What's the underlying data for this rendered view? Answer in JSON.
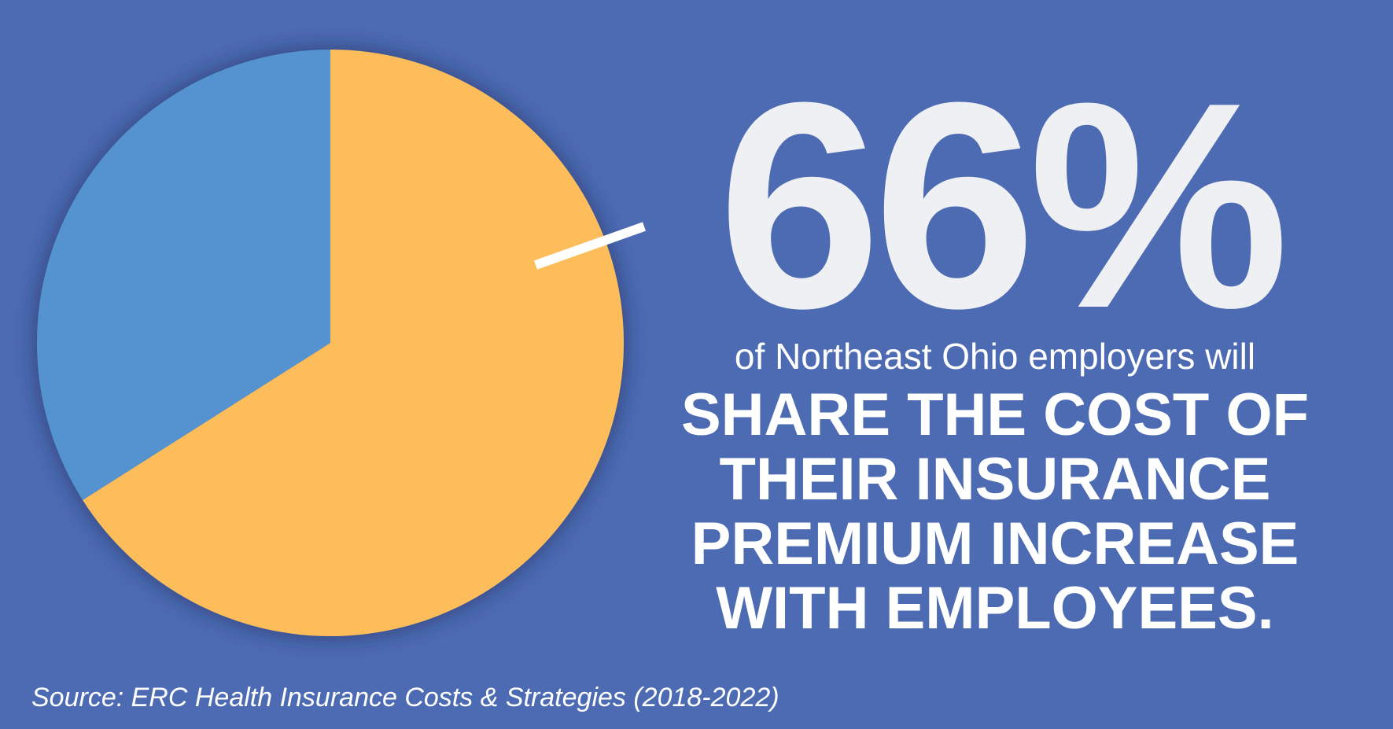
{
  "chart_data": {
    "type": "pie",
    "values": [
      66,
      34
    ],
    "value_labels": [
      "66%",
      null
    ],
    "colors": [
      "#fcbd5a",
      "#5592d0"
    ],
    "subtitle": "of Northeast Ohio employers will",
    "headline": [
      "SHARE THE COST OF",
      "THEIR INSURANCE",
      "PREMIUM INCREASE",
      "WITH EMPLOYEES."
    ],
    "source": "Source: ERC Health Insurance Costs & Strategies (2018-2022)"
  }
}
